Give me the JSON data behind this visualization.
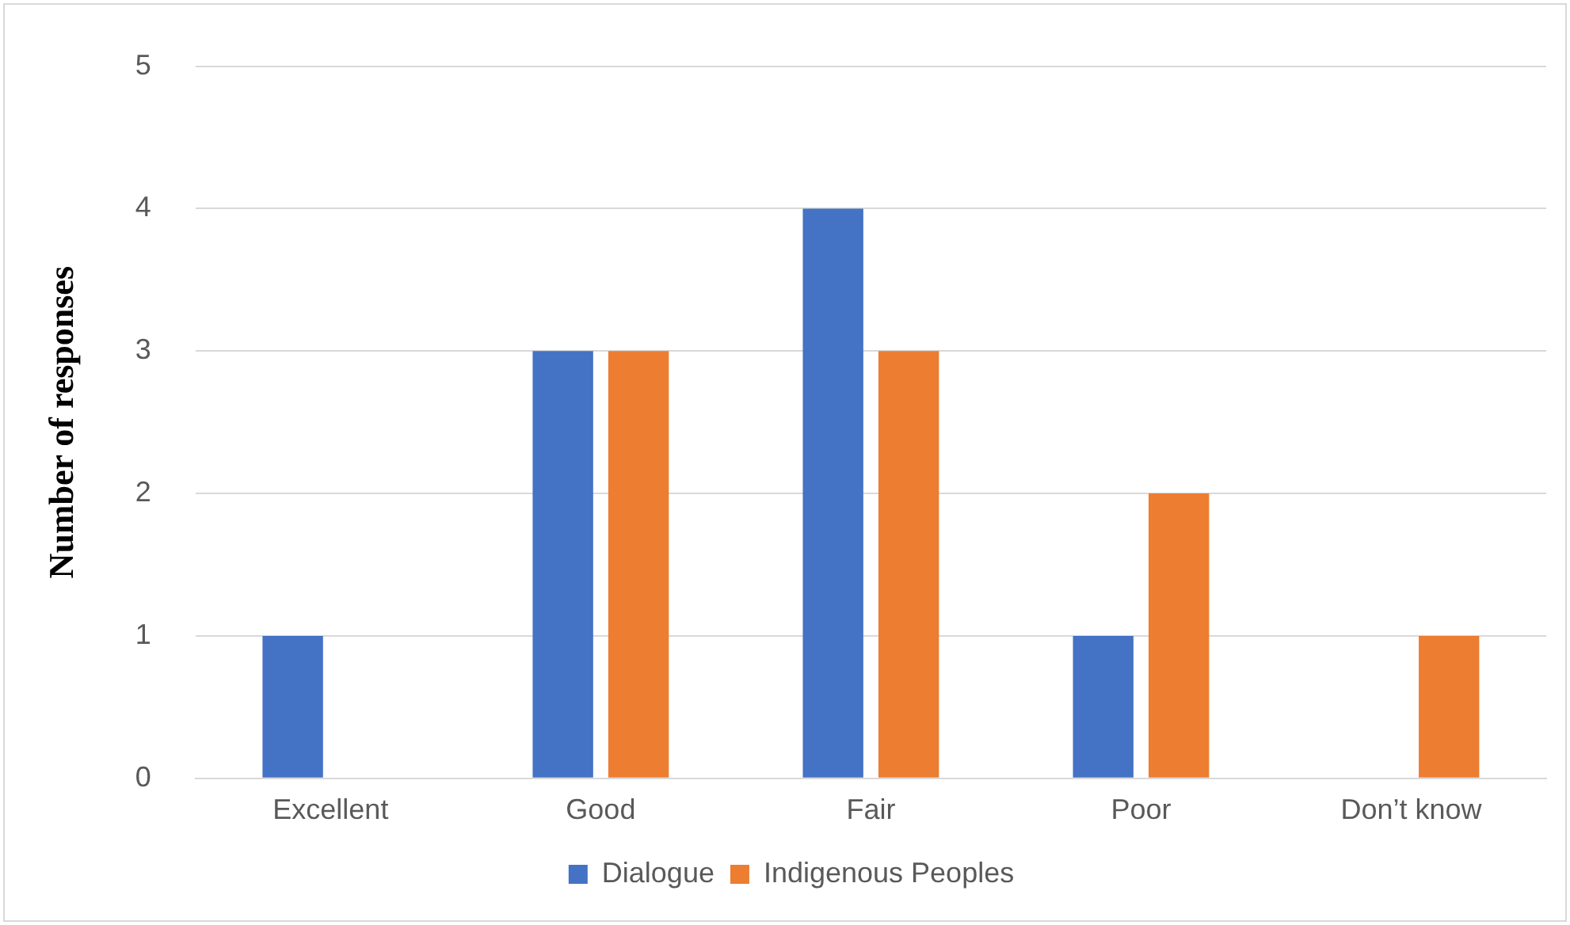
{
  "chart_data": {
    "type": "bar",
    "ylabel": "Number of responses",
    "categories": [
      "Excellent",
      "Good",
      "Fair",
      "Poor",
      "Don’t know"
    ],
    "series": [
      {
        "name": "Dialogue",
        "color": "#4472c4",
        "values": [
          1,
          3,
          4,
          1,
          0
        ]
      },
      {
        "name": "Indigenous Peoples",
        "color": "#ed7d31",
        "values": [
          0,
          3,
          3,
          2,
          1
        ]
      }
    ],
    "ylim": [
      0,
      5
    ],
    "yticks": [
      0,
      1,
      2,
      3,
      4,
      5
    ],
    "grid": "y",
    "legend": "bottom"
  }
}
